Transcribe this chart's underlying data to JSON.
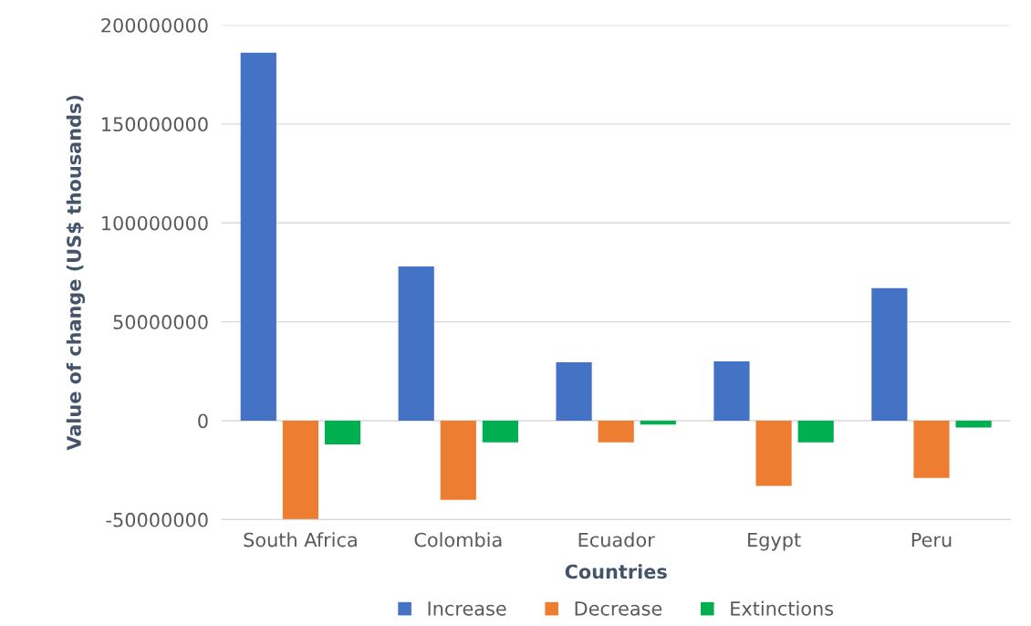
{
  "chart_data": {
    "type": "bar",
    "xlabel": "Countries",
    "ylabel": "Value of change (US$ thousands)",
    "categories": [
      "South Africa",
      "Colombia",
      "Ecuador",
      "Egypt",
      "Peru"
    ],
    "series": [
      {
        "name": "Increase",
        "color": "#4472c4",
        "values": [
          186000000,
          78000000,
          29500000,
          30000000,
          67000000
        ]
      },
      {
        "name": "Decrease",
        "color": "#ed7d31",
        "values": [
          -50000000,
          -40000000,
          -11000000,
          -33000000,
          -29000000
        ]
      },
      {
        "name": "Extinctions",
        "color": "#00b050",
        "values": [
          -12000000,
          -11000000,
          -2000000,
          -11000000,
          -3500000
        ]
      }
    ],
    "ylim": [
      -50000000,
      200000000
    ],
    "yticks": [
      -50000000,
      0,
      50000000,
      100000000,
      150000000,
      200000000
    ],
    "grid": "y",
    "legend": "bottom"
  }
}
